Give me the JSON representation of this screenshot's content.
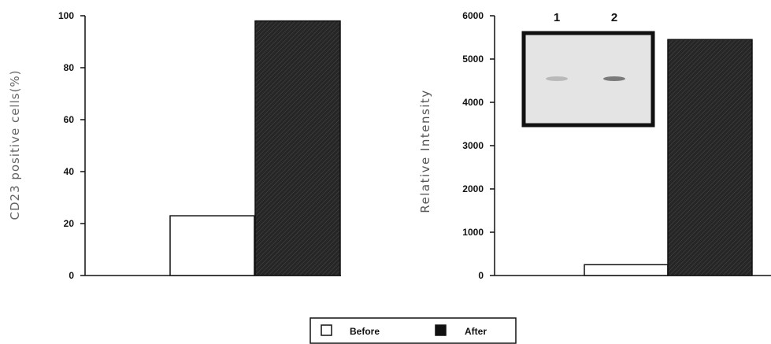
{
  "chart_data": [
    {
      "type": "bar",
      "categories": [
        "Before",
        "After"
      ],
      "values": [
        23,
        98
      ],
      "ylabel": "CD23 positive cells(%)",
      "xlabel": "",
      "ylim": [
        0,
        100
      ],
      "yticks": [
        "0",
        "20",
        "40",
        "60",
        "80",
        "100"
      ],
      "grid": false,
      "colors": [
        "#ffffff",
        "#222222"
      ]
    },
    {
      "type": "bar",
      "categories": [
        "Before",
        "After"
      ],
      "values": [
        250,
        5450
      ],
      "ylabel": "Relative Intensity",
      "xlabel": "",
      "ylim": [
        0,
        6000
      ],
      "yticks": [
        "0",
        "1000",
        "2000",
        "3000",
        "4000",
        "5000",
        "6000"
      ],
      "grid": false,
      "colors": [
        "#ffffff",
        "#222222"
      ],
      "inset": {
        "lanes": [
          "1",
          "2"
        ],
        "band_intensity": [
          0.3,
          0.75
        ]
      }
    }
  ],
  "legend": {
    "placement": "bottom-center",
    "items": [
      {
        "label": "Before",
        "color": "#ffffff"
      },
      {
        "label": "After",
        "color": "#111111"
      }
    ]
  }
}
